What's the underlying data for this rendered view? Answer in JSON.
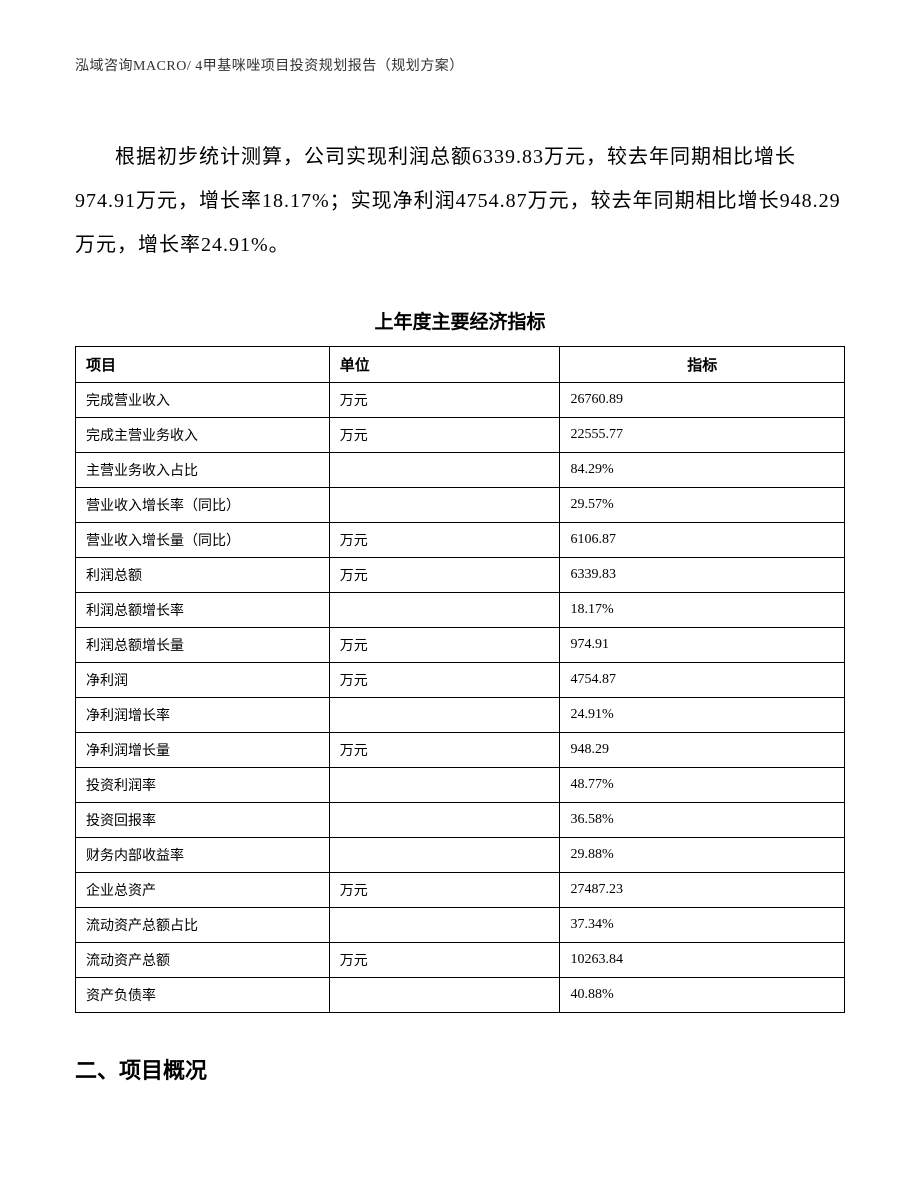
{
  "header": {
    "text": "泓域咨询MACRO/ 4甲基咪唑项目投资规划报告（规划方案）"
  },
  "paragraph": {
    "text": "根据初步统计测算，公司实现利润总额6339.83万元，较去年同期相比增长974.91万元，增长率18.17%；实现净利润4754.87万元，较去年同期相比增长948.29万元，增长率24.91%。"
  },
  "table": {
    "title": "上年度主要经济指标",
    "columns": {
      "item": "项目",
      "unit": "单位",
      "value": "指标"
    },
    "rows": [
      {
        "item": "完成营业收入",
        "unit": "万元",
        "value": "26760.89"
      },
      {
        "item": "完成主营业务收入",
        "unit": "万元",
        "value": "22555.77"
      },
      {
        "item": "主营业务收入占比",
        "unit": "",
        "value": "84.29%"
      },
      {
        "item": "营业收入增长率（同比）",
        "unit": "",
        "value": "29.57%"
      },
      {
        "item": "营业收入增长量（同比）",
        "unit": "万元",
        "value": "6106.87"
      },
      {
        "item": "利润总额",
        "unit": "万元",
        "value": "6339.83"
      },
      {
        "item": "利润总额增长率",
        "unit": "",
        "value": "18.17%"
      },
      {
        "item": "利润总额增长量",
        "unit": "万元",
        "value": "974.91"
      },
      {
        "item": "净利润",
        "unit": "万元",
        "value": "4754.87"
      },
      {
        "item": "净利润增长率",
        "unit": "",
        "value": "24.91%"
      },
      {
        "item": "净利润增长量",
        "unit": "万元",
        "value": "948.29"
      },
      {
        "item": "投资利润率",
        "unit": "",
        "value": "48.77%"
      },
      {
        "item": "投资回报率",
        "unit": "",
        "value": "36.58%"
      },
      {
        "item": "财务内部收益率",
        "unit": "",
        "value": "29.88%"
      },
      {
        "item": "企业总资产",
        "unit": "万元",
        "value": "27487.23"
      },
      {
        "item": "流动资产总额占比",
        "unit": "",
        "value": "37.34%"
      },
      {
        "item": "流动资产总额",
        "unit": "万元",
        "value": "10263.84"
      },
      {
        "item": "资产负债率",
        "unit": "",
        "value": "40.88%"
      }
    ]
  },
  "section": {
    "heading": "二、项目概况"
  }
}
